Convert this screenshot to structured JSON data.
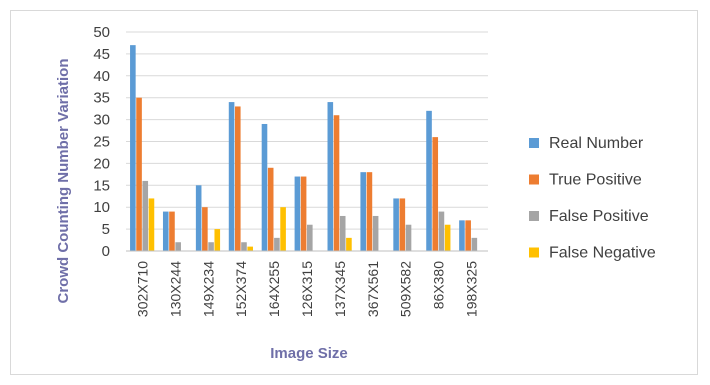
{
  "chart_data": {
    "type": "bar",
    "title": "",
    "xlabel": "Image Size",
    "ylabel": "Crowd Counting Number Variation",
    "ylim": [
      0,
      50
    ],
    "yticks": [
      0,
      5,
      10,
      15,
      20,
      25,
      30,
      35,
      40,
      45,
      50
    ],
    "grid": true,
    "legend_position": "right",
    "categories": [
      "302X710",
      "130X244",
      "149X234",
      "152X374",
      "164X255",
      "126X315",
      "137X345",
      "367X561",
      "509X582",
      "86X380",
      "198X325"
    ],
    "series": [
      {
        "name": "Real Number",
        "color": "#5b9bd5",
        "values": [
          47,
          9,
          15,
          34,
          29,
          17,
          34,
          18,
          12,
          32,
          7
        ]
      },
      {
        "name": "True Positive",
        "color": "#ed7d31",
        "values": [
          35,
          9,
          10,
          33,
          19,
          17,
          31,
          18,
          12,
          26,
          7
        ]
      },
      {
        "name": "False Positive",
        "color": "#a5a5a5",
        "values": [
          16,
          2,
          2,
          2,
          3,
          6,
          8,
          8,
          6,
          9,
          3
        ]
      },
      {
        "name": "False Negative",
        "color": "#ffc000",
        "values": [
          12,
          0,
          5,
          1,
          10,
          0,
          3,
          0,
          0,
          6,
          0
        ]
      }
    ]
  }
}
